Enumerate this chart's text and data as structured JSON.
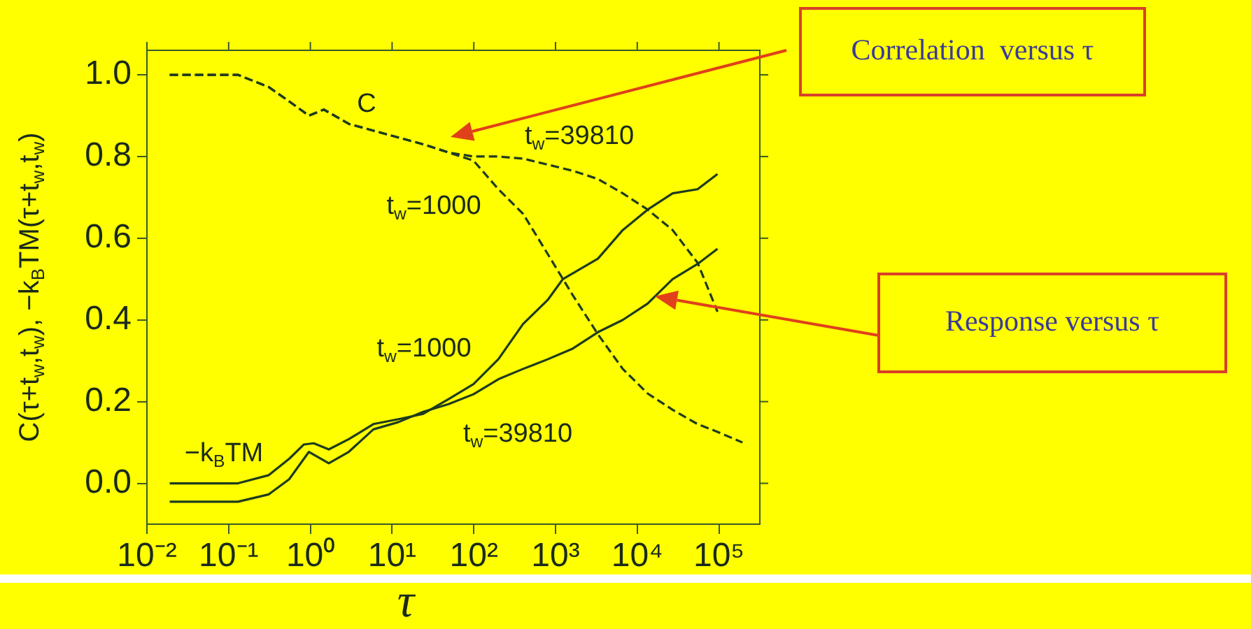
{
  "chart_data": {
    "type": "line",
    "xlabel": "τ",
    "ylabel": "C(τ+t$_{w}$,t$_{w}$), −k$_{B}$TM(τ+t$_{w}$,t$_{w}$)",
    "log": "x",
    "grid": false,
    "legend": false,
    "marker": "none",
    "xlim": [
      0.01,
      316228
    ],
    "xticks": [
      {
        "value": 0.01,
        "label": "10⁻²"
      },
      {
        "value": 0.1,
        "label": "10⁻¹"
      },
      {
        "value": 1,
        "label": "10⁰"
      },
      {
        "value": 10,
        "label": "10¹"
      },
      {
        "value": 100,
        "label": "10²"
      },
      {
        "value": 1000,
        "label": "10³"
      },
      {
        "value": 10000,
        "label": "10⁴"
      },
      {
        "value": 100000,
        "label": "10⁵"
      }
    ],
    "ylim": [
      -0.1,
      1.06
    ],
    "yticks": [
      {
        "value": 0,
        "label": "0.0"
      },
      {
        "value": 0.2,
        "label": "0.2"
      },
      {
        "value": 0.4,
        "label": "0.4"
      },
      {
        "value": 0.6,
        "label": "0.6"
      },
      {
        "value": 0.8,
        "label": "0.8"
      },
      {
        "value": 1,
        "label": "1.0"
      }
    ],
    "series": [
      {
        "color": "#1e3b1e",
        "line_style": "dashed",
        "x": [
          0.019,
          0.13,
          0.31,
          0.55,
          0.96,
          1.46,
          2.95,
          6.8,
          24,
          49,
          99,
          200,
          400,
          810,
          1630,
          3300,
          6650,
          13400,
          27100,
          54700,
          95900,
          194000
        ],
        "values": [
          1.0,
          1.0,
          0.97,
          0.935,
          0.9,
          0.915,
          0.88,
          0.86,
          0.83,
          0.81,
          0.79,
          0.72,
          0.66,
          0.56,
          0.46,
          0.365,
          0.28,
          0.22,
          0.18,
          0.145,
          0.126,
          0.1
        ]
      },
      {
        "color": "#1e3b1e",
        "line_style": "dashed",
        "x": [
          0.019,
          0.13,
          0.31,
          0.55,
          0.96,
          1.46,
          2.95,
          6.8,
          24,
          49,
          99,
          200,
          400,
          810,
          1630,
          3300,
          6650,
          13400,
          27100,
          54700,
          95900
        ],
        "values": [
          1.0,
          1.0,
          0.97,
          0.935,
          0.9,
          0.915,
          0.88,
          0.86,
          0.83,
          0.81,
          0.8,
          0.8,
          0.795,
          0.78,
          0.765,
          0.745,
          0.71,
          0.67,
          0.62,
          0.54,
          0.42
        ]
      },
      {
        "color": "#1e3b1e",
        "line_style": "solid",
        "x": [
          0.019,
          0.13,
          0.31,
          0.55,
          0.83,
          1.1,
          1.68,
          2.95,
          5.9,
          12,
          24,
          49,
          99,
          200,
          400,
          810,
          1230,
          3300,
          6650,
          13400,
          27100,
          54700,
          95900
        ],
        "values": [
          0.0,
          0.0,
          0.02,
          0.06,
          0.095,
          0.098,
          0.083,
          0.108,
          0.145,
          0.157,
          0.17,
          0.206,
          0.243,
          0.304,
          0.39,
          0.45,
          0.5,
          0.55,
          0.62,
          0.67,
          0.71,
          0.72,
          0.757
        ]
      },
      {
        "color": "#1e3b1e",
        "line_style": "solid",
        "x": [
          0.019,
          0.13,
          0.31,
          0.55,
          0.96,
          1.68,
          2.95,
          5.9,
          12,
          24,
          49,
          99,
          200,
          400,
          810,
          1630,
          3300,
          6650,
          13400,
          27100,
          54700,
          95900
        ],
        "values": [
          -0.045,
          -0.045,
          -0.027,
          0.01,
          0.077,
          0.049,
          0.077,
          0.132,
          0.15,
          0.175,
          0.194,
          0.218,
          0.255,
          0.28,
          0.304,
          0.33,
          0.37,
          0.4,
          0.44,
          0.5,
          0.537,
          0.574
        ]
      }
    ],
    "annotations": [
      "C",
      "t$_{w}$=39810",
      "t$_{w}$=1000",
      "t$_{w}$=1000",
      "t$_{w}$=39810",
      "−k$_{B}$TM",
      "Correlation  versus τ",
      "Response versus τ"
    ]
  }
}
